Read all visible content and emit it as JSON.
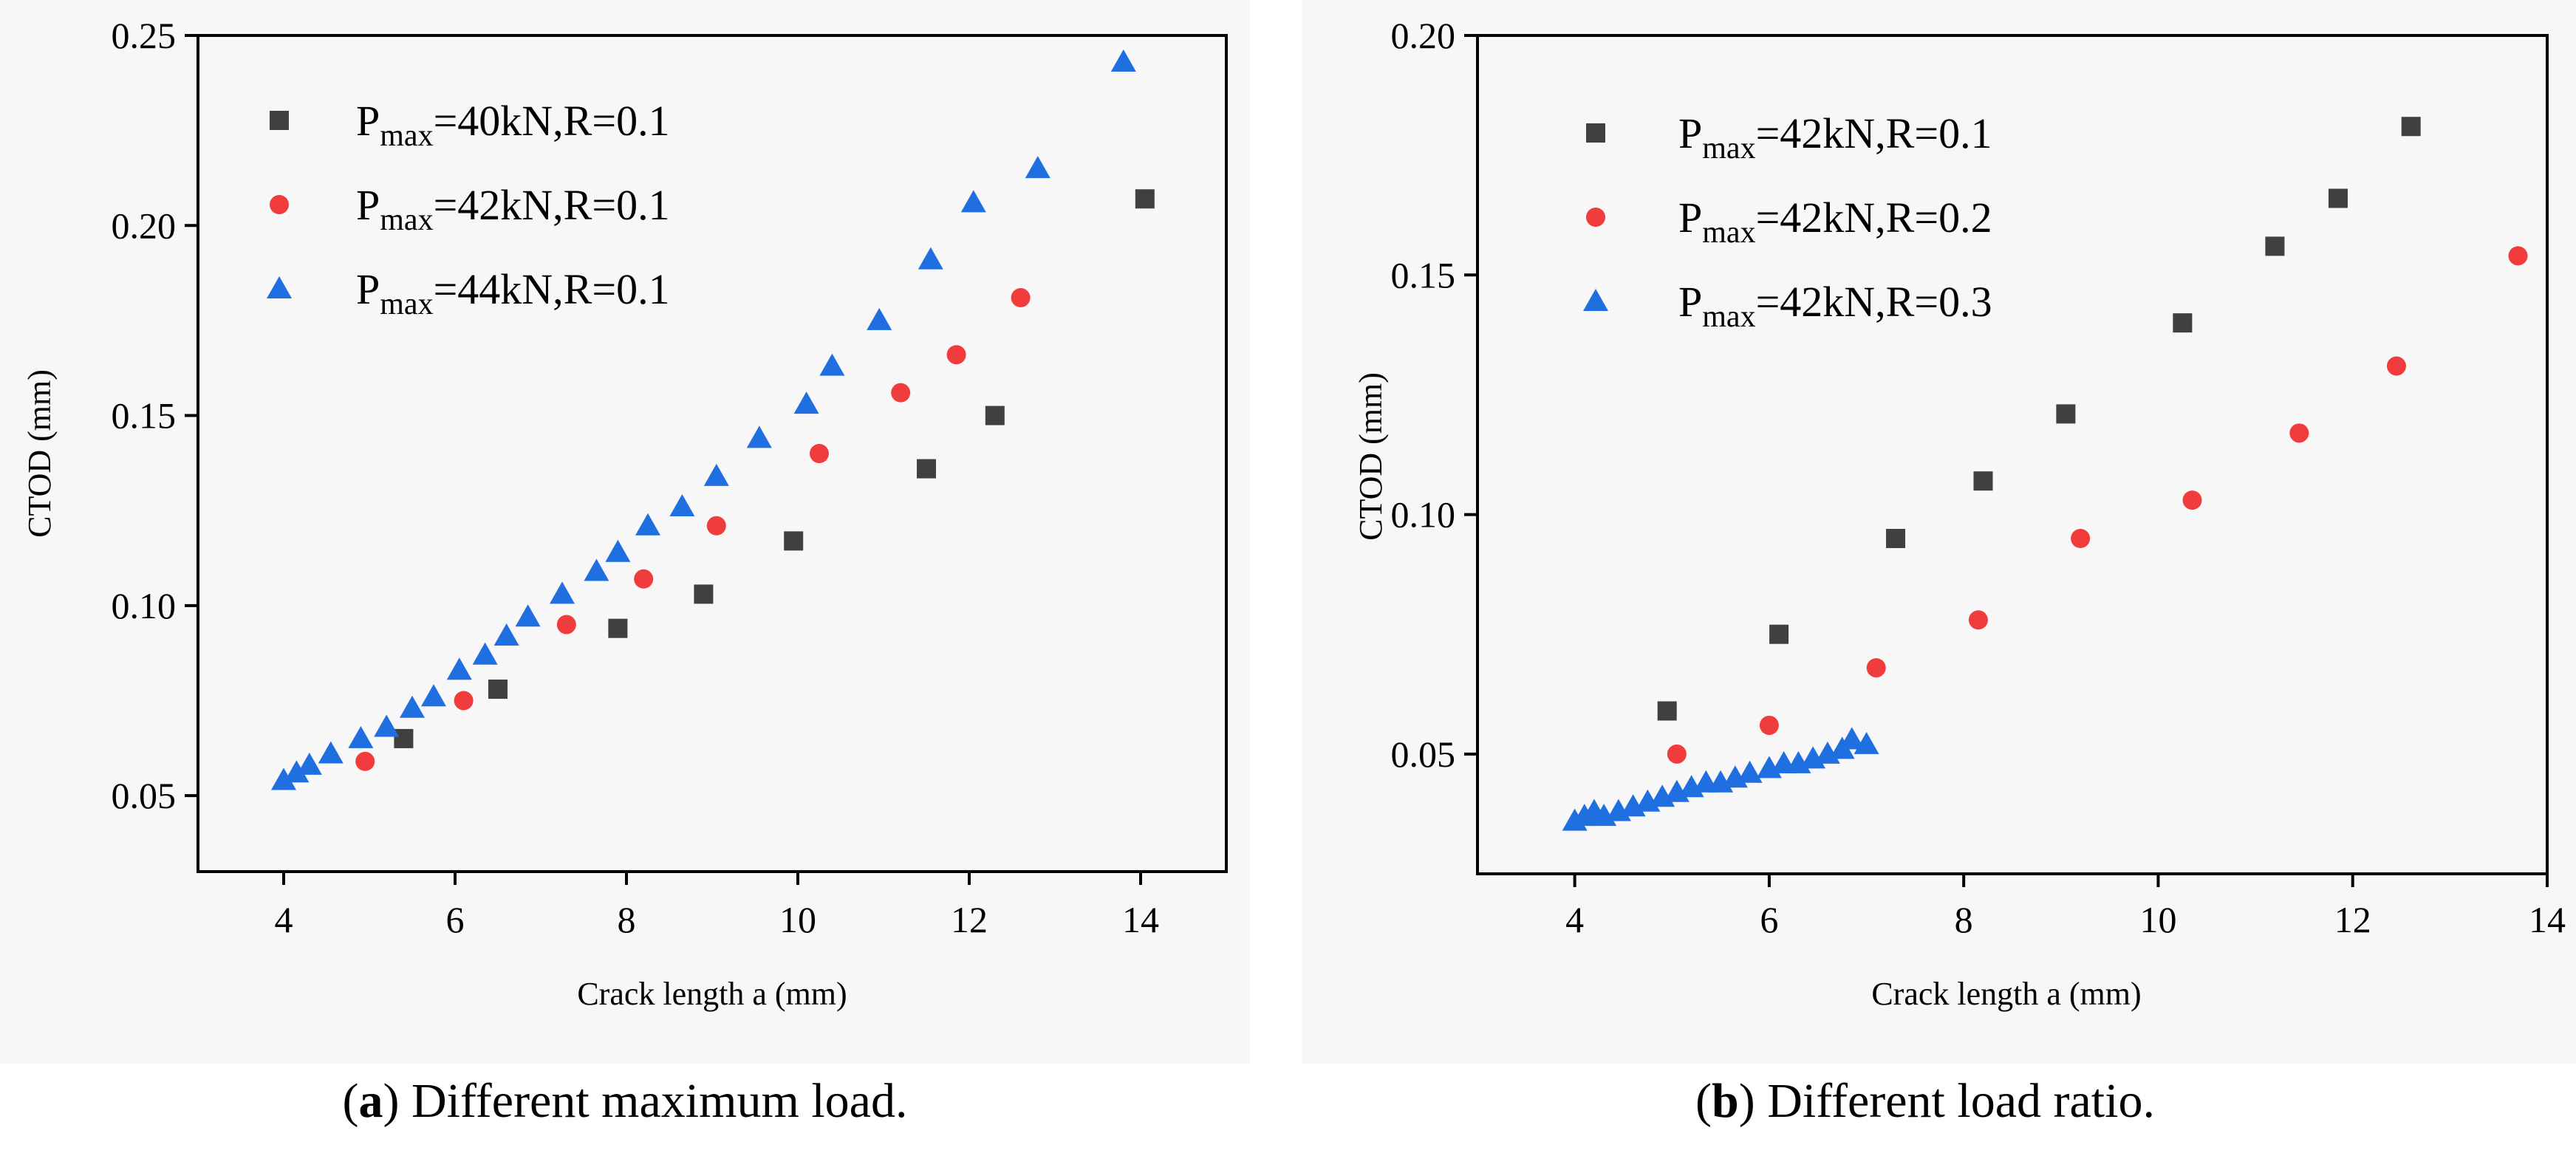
{
  "chart_data": [
    {
      "type": "scatter",
      "panel": "a",
      "caption_letter": "a",
      "caption_text": ") Different maximum load.",
      "xlabel": "Crack length a (mm)",
      "ylabel": "CTOD  (mm)",
      "xlim": [
        3,
        15
      ],
      "ylim": [
        0.03,
        0.25
      ],
      "xticks": [
        "4",
        "6",
        "8",
        "10",
        "12",
        "14"
      ],
      "yticks": [
        "0.05",
        "0.10",
        "0.15",
        "0.20",
        "0.25"
      ],
      "legend_position": "top-left",
      "series": [
        {
          "label": "P_max=40kN,R=0.1",
          "label_parts": [
            "P",
            "max",
            "=40kN,R=0.1"
          ],
          "marker": "square",
          "color": "#404040",
          "x": [
            5.4,
            6.5,
            7.9,
            8.9,
            9.95,
            11.5,
            12.3,
            14.05
          ],
          "y": [
            0.065,
            0.078,
            0.094,
            0.103,
            0.117,
            0.136,
            0.15,
            0.207
          ]
        },
        {
          "label": "P_max=42kN,R=0.1",
          "label_parts": [
            "P",
            "max",
            "=42kN,R=0.1"
          ],
          "marker": "circle",
          "color": "#f03c3c",
          "x": [
            4.95,
            6.1,
            7.3,
            8.2,
            9.05,
            10.25,
            11.2,
            11.85,
            12.6
          ],
          "y": [
            0.059,
            0.075,
            0.095,
            0.107,
            0.121,
            0.14,
            0.156,
            0.166,
            0.181
          ]
        },
        {
          "label": "P_max=44kN,R=0.1",
          "label_parts": [
            "P",
            "max",
            "=44kN,R=0.1"
          ],
          "marker": "triangle",
          "color": "#1f6fe0",
          "x": [
            4.0,
            4.15,
            4.3,
            4.55,
            4.9,
            5.2,
            5.5,
            5.75,
            6.05,
            6.35,
            6.6,
            6.85,
            7.25,
            7.65,
            7.9,
            8.25,
            8.65,
            9.05,
            9.55,
            10.1,
            10.4,
            10.95,
            11.55,
            12.05,
            12.8,
            13.8
          ],
          "y": [
            0.054,
            0.056,
            0.058,
            0.061,
            0.065,
            0.068,
            0.073,
            0.076,
            0.083,
            0.087,
            0.092,
            0.097,
            0.103,
            0.109,
            0.114,
            0.121,
            0.126,
            0.134,
            0.144,
            0.153,
            0.163,
            0.175,
            0.191,
            0.206,
            0.215,
            0.243
          ]
        }
      ]
    },
    {
      "type": "scatter",
      "panel": "b",
      "caption_letter": "b",
      "caption_text": ") Different load ratio.",
      "xlabel": "Crack length a (mm)",
      "ylabel": "CTOD  (mm)",
      "xlim": [
        3,
        14
      ],
      "ylim": [
        0.025,
        0.2
      ],
      "xticks": [
        "4",
        "6",
        "8",
        "10",
        "12",
        "14"
      ],
      "yticks": [
        "0.05",
        "0.10",
        "0.15",
        "0.20"
      ],
      "legend_position": "top-left",
      "series": [
        {
          "label": "P_max=42kN,R=0.1",
          "label_parts": [
            "P",
            "max",
            "=42kN,R=0.1"
          ],
          "marker": "square",
          "color": "#404040",
          "x": [
            4.95,
            6.1,
            7.3,
            8.2,
            9.05,
            10.25,
            11.2,
            11.85,
            12.6
          ],
          "y": [
            0.059,
            0.075,
            0.095,
            0.107,
            0.121,
            0.14,
            0.156,
            0.166,
            0.181
          ]
        },
        {
          "label": "P_max=42kN,R=0.2",
          "label_parts": [
            "P",
            "max",
            "=42kN,R=0.2"
          ],
          "marker": "circle",
          "color": "#f03c3c",
          "x": [
            5.05,
            6.0,
            7.1,
            8.15,
            9.2,
            10.35,
            11.45,
            12.45,
            13.7
          ],
          "y": [
            0.05,
            0.056,
            0.068,
            0.078,
            0.095,
            0.103,
            0.117,
            0.131,
            0.154
          ]
        },
        {
          "label": "P_max=42kN,R=0.3",
          "label_parts": [
            "P",
            "max",
            "=42kN,R=0.3"
          ],
          "marker": "triangle",
          "color": "#1f6fe0",
          "x": [
            4.0,
            4.1,
            4.2,
            4.3,
            4.45,
            4.6,
            4.75,
            4.9,
            5.05,
            5.2,
            5.35,
            5.5,
            5.65,
            5.8,
            6.0,
            6.15,
            6.3,
            6.45,
            6.6,
            6.75,
            6.85,
            7.0
          ],
          "y": [
            0.036,
            0.037,
            0.038,
            0.037,
            0.038,
            0.039,
            0.04,
            0.041,
            0.042,
            0.043,
            0.044,
            0.044,
            0.045,
            0.046,
            0.047,
            0.048,
            0.048,
            0.049,
            0.05,
            0.051,
            0.053,
            0.052
          ]
        }
      ]
    }
  ]
}
